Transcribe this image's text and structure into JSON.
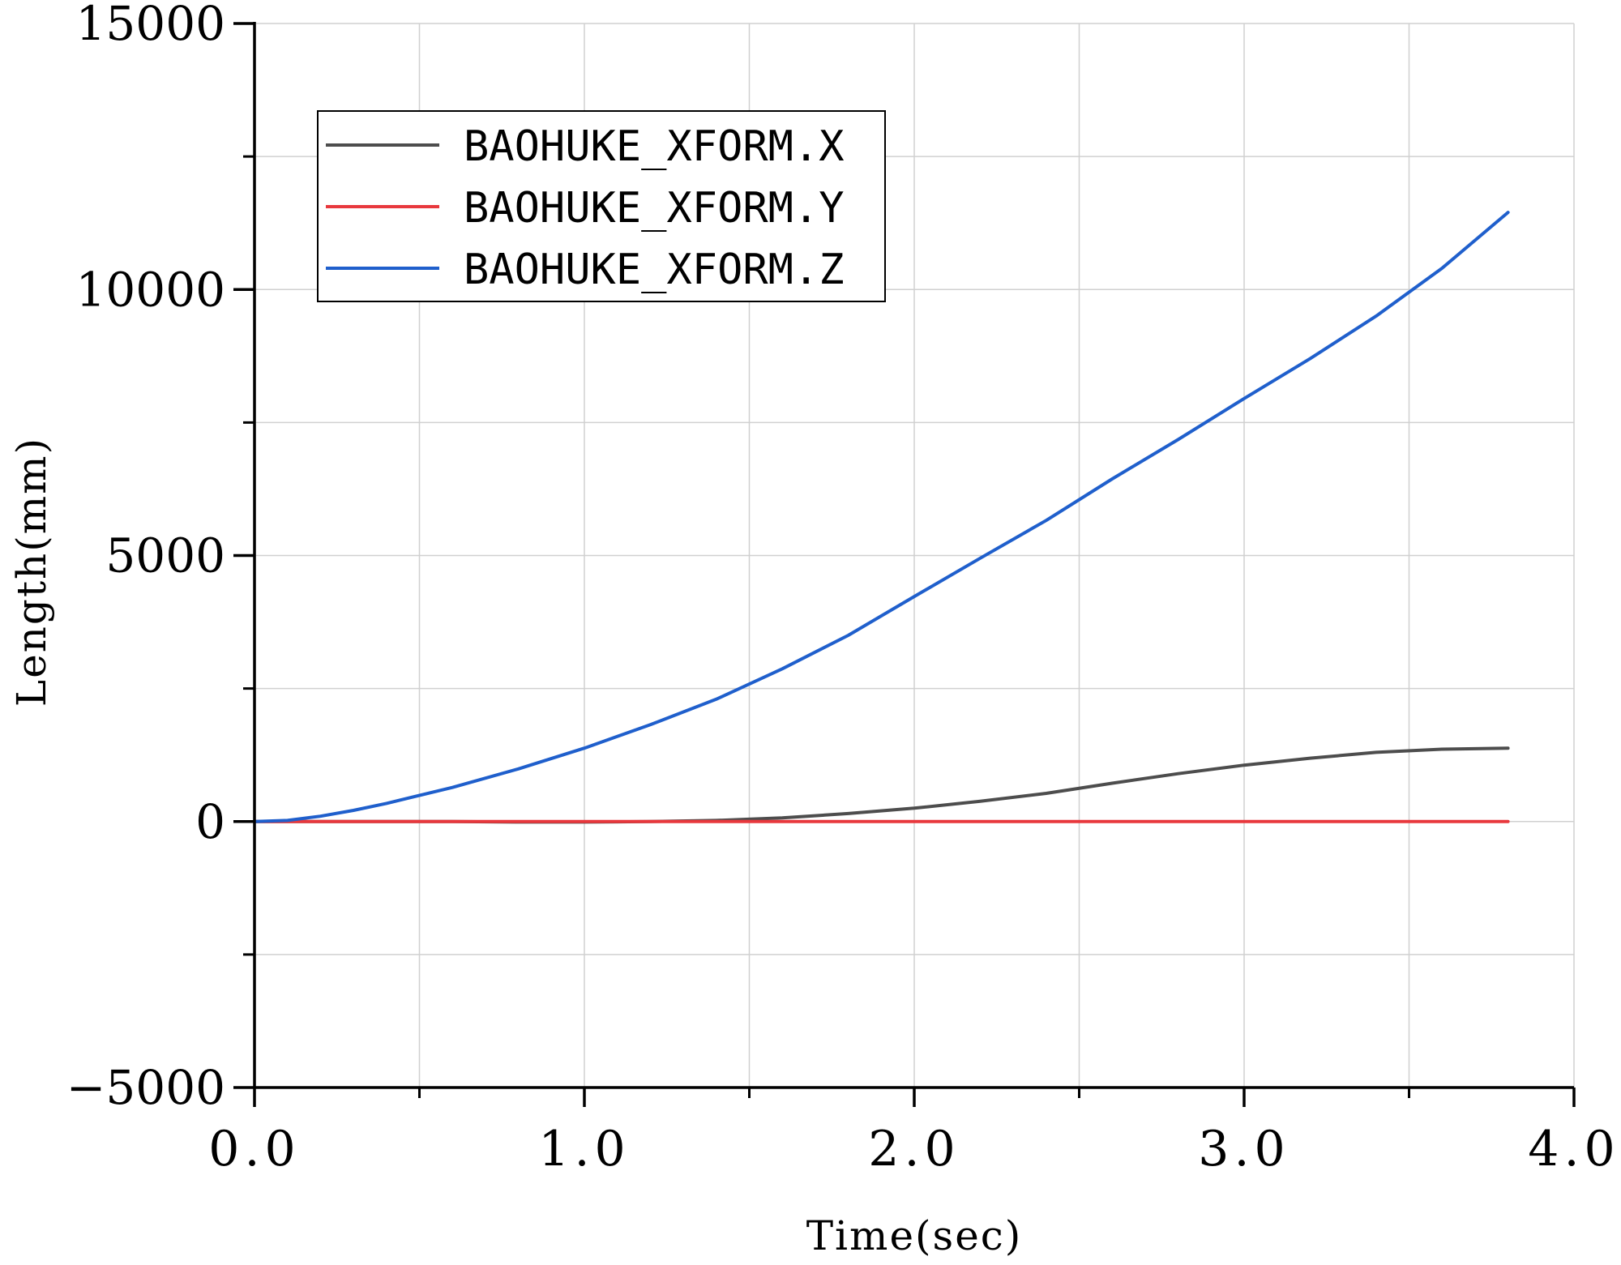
{
  "chart_data": {
    "type": "line",
    "xlabel": "Time(sec)",
    "ylabel": "Length(mm)",
    "xlim": [
      0,
      4
    ],
    "ylim": [
      -5000,
      15000
    ],
    "x_ticks": [
      0,
      1,
      2,
      3,
      4
    ],
    "x_tick_labels": [
      "0.0",
      "1.0",
      "2.0",
      "3.0",
      "4.0"
    ],
    "x_minor_ticks": [
      0.5,
      1.5,
      2.5,
      3.5
    ],
    "y_ticks": [
      -5000,
      0,
      5000,
      10000,
      15000
    ],
    "y_tick_labels": [
      "−5000",
      "0",
      "5000",
      "10000",
      "15000"
    ],
    "y_minor_ticks": [
      -2500,
      2500,
      7500,
      12500
    ],
    "grid": true,
    "legend_position": "top-left",
    "series": [
      {
        "name": "BAOHUKE_XFORM.X",
        "color": "#4d4d4d",
        "x": [
          0,
          0.2,
          0.4,
          0.6,
          0.8,
          1.0,
          1.2,
          1.4,
          1.6,
          1.8,
          2.0,
          2.2,
          2.4,
          2.6,
          2.8,
          3.0,
          3.2,
          3.4,
          3.6,
          3.8
        ],
        "y": [
          0,
          0,
          0,
          0,
          -10,
          -10,
          0,
          20,
          70,
          150,
          250,
          380,
          530,
          720,
          900,
          1060,
          1190,
          1300,
          1360,
          1380
        ]
      },
      {
        "name": "BAOHUKE_XFORM.Y",
        "color": "#e8383d",
        "x": [
          0,
          0.5,
          1.0,
          1.5,
          2.0,
          2.5,
          3.0,
          3.5,
          3.8
        ],
        "y": [
          0,
          0,
          0,
          0,
          0,
          0,
          0,
          0,
          0
        ]
      },
      {
        "name": "BAOHUKE_XFORM.Z",
        "color": "#1f5fcc",
        "x": [
          0,
          0.1,
          0.2,
          0.3,
          0.4,
          0.6,
          0.8,
          1.0,
          1.2,
          1.4,
          1.6,
          1.8,
          2.0,
          2.2,
          2.4,
          2.6,
          2.8,
          3.0,
          3.2,
          3.4,
          3.6,
          3.8
        ],
        "y": [
          0,
          20,
          100,
          210,
          340,
          640,
          990,
          1380,
          1820,
          2300,
          2870,
          3500,
          4230,
          4950,
          5660,
          6440,
          7180,
          7950,
          8700,
          9500,
          10400,
          11450
        ]
      }
    ]
  }
}
